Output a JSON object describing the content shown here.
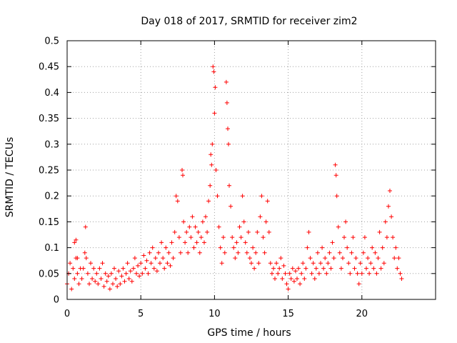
{
  "chart_data": {
    "type": "scatter",
    "title": "Day 018 of 2017, SRMTID for receiver zim2",
    "xlabel": "GPS time / hours",
    "ylabel": "SRMTID / TECUs",
    "xlim": [
      0,
      25
    ],
    "ylim": [
      0,
      0.5
    ],
    "x_ticks": [
      0,
      5,
      10,
      15,
      20
    ],
    "y_ticks": [
      0,
      0.05,
      0.1,
      0.15,
      0.2,
      0.25,
      0.3,
      0.35,
      0.4,
      0.45,
      0.5
    ],
    "grid": true,
    "marker": "+",
    "color": "#ff0000",
    "series": [
      {
        "name": "SRMTID",
        "points": [
          [
            0.0,
            0.03
          ],
          [
            0.1,
            0.05
          ],
          [
            0.2,
            0.07
          ],
          [
            0.3,
            0.02
          ],
          [
            0.4,
            0.06
          ],
          [
            0.5,
            0.04
          ],
          [
            0.6,
            0.08
          ],
          [
            0.7,
            0.05
          ],
          [
            0.8,
            0.03
          ],
          [
            0.9,
            0.06
          ],
          [
            0.5,
            0.11
          ],
          [
            0.6,
            0.115
          ],
          [
            0.7,
            0.08
          ],
          [
            1.0,
            0.04
          ],
          [
            1.1,
            0.06
          ],
          [
            1.2,
            0.09
          ],
          [
            1.25,
            0.14
          ],
          [
            1.3,
            0.08
          ],
          [
            1.4,
            0.05
          ],
          [
            1.5,
            0.03
          ],
          [
            1.6,
            0.07
          ],
          [
            1.7,
            0.04
          ],
          [
            1.8,
            0.06
          ],
          [
            1.9,
            0.035
          ],
          [
            2.0,
            0.05
          ],
          [
            2.1,
            0.03
          ],
          [
            2.2,
            0.06
          ],
          [
            2.3,
            0.04
          ],
          [
            2.4,
            0.07
          ],
          [
            2.5,
            0.025
          ],
          [
            2.6,
            0.05
          ],
          [
            2.7,
            0.035
          ],
          [
            2.8,
            0.045
          ],
          [
            2.9,
            0.02
          ],
          [
            3.0,
            0.05
          ],
          [
            3.1,
            0.03
          ],
          [
            3.2,
            0.06
          ],
          [
            3.3,
            0.04
          ],
          [
            3.4,
            0.025
          ],
          [
            3.5,
            0.055
          ],
          [
            3.6,
            0.03
          ],
          [
            3.7,
            0.045
          ],
          [
            3.8,
            0.06
          ],
          [
            3.9,
            0.035
          ],
          [
            4.0,
            0.05
          ],
          [
            4.1,
            0.07
          ],
          [
            4.2,
            0.04
          ],
          [
            4.3,
            0.055
          ],
          [
            4.4,
            0.035
          ],
          [
            4.5,
            0.06
          ],
          [
            4.6,
            0.08
          ],
          [
            4.7,
            0.05
          ],
          [
            4.8,
            0.065
          ],
          [
            4.9,
            0.045
          ],
          [
            5.0,
            0.07
          ],
          [
            5.1,
            0.05
          ],
          [
            5.2,
            0.085
          ],
          [
            5.3,
            0.06
          ],
          [
            5.4,
            0.075
          ],
          [
            5.5,
            0.05
          ],
          [
            5.6,
            0.09
          ],
          [
            5.7,
            0.07
          ],
          [
            5.8,
            0.1
          ],
          [
            5.9,
            0.06
          ],
          [
            6.0,
            0.08
          ],
          [
            6.1,
            0.055
          ],
          [
            6.2,
            0.09
          ],
          [
            6.3,
            0.07
          ],
          [
            6.4,
            0.11
          ],
          [
            6.5,
            0.08
          ],
          [
            6.6,
            0.06
          ],
          [
            6.7,
            0.1
          ],
          [
            6.8,
            0.07
          ],
          [
            6.9,
            0.09
          ],
          [
            7.0,
            0.065
          ],
          [
            7.1,
            0.11
          ],
          [
            7.2,
            0.08
          ],
          [
            7.3,
            0.13
          ],
          [
            7.4,
            0.2
          ],
          [
            7.5,
            0.19
          ],
          [
            7.6,
            0.12
          ],
          [
            7.7,
            0.09
          ],
          [
            7.8,
            0.25
          ],
          [
            7.85,
            0.24
          ],
          [
            7.9,
            0.15
          ],
          [
            8.0,
            0.11
          ],
          [
            8.1,
            0.13
          ],
          [
            8.2,
            0.09
          ],
          [
            8.3,
            0.14
          ],
          [
            8.4,
            0.12
          ],
          [
            8.5,
            0.16
          ],
          [
            8.6,
            0.1
          ],
          [
            8.7,
            0.14
          ],
          [
            8.8,
            0.11
          ],
          [
            8.9,
            0.13
          ],
          [
            9.0,
            0.09
          ],
          [
            9.1,
            0.12
          ],
          [
            9.2,
            0.15
          ],
          [
            9.3,
            0.11
          ],
          [
            9.4,
            0.16
          ],
          [
            9.5,
            0.13
          ],
          [
            9.6,
            0.19
          ],
          [
            9.7,
            0.22
          ],
          [
            9.75,
            0.28
          ],
          [
            9.8,
            0.26
          ],
          [
            9.85,
            0.3
          ],
          [
            9.9,
            0.45
          ],
          [
            9.95,
            0.44
          ],
          [
            10.0,
            0.36
          ],
          [
            10.05,
            0.41
          ],
          [
            10.1,
            0.25
          ],
          [
            10.2,
            0.2
          ],
          [
            10.3,
            0.14
          ],
          [
            10.4,
            0.1
          ],
          [
            10.5,
            0.07
          ],
          [
            10.6,
            0.12
          ],
          [
            10.7,
            0.09
          ],
          [
            10.8,
            0.42
          ],
          [
            10.85,
            0.38
          ],
          [
            10.9,
            0.33
          ],
          [
            10.95,
            0.3
          ],
          [
            11.0,
            0.22
          ],
          [
            11.1,
            0.18
          ],
          [
            11.2,
            0.12
          ],
          [
            11.3,
            0.1
          ],
          [
            11.4,
            0.08
          ],
          [
            11.5,
            0.11
          ],
          [
            11.6,
            0.09
          ],
          [
            11.7,
            0.14
          ],
          [
            11.8,
            0.12
          ],
          [
            11.9,
            0.2
          ],
          [
            12.0,
            0.15
          ],
          [
            12.1,
            0.11
          ],
          [
            12.2,
            0.09
          ],
          [
            12.3,
            0.13
          ],
          [
            12.4,
            0.08
          ],
          [
            12.5,
            0.07
          ],
          [
            12.6,
            0.1
          ],
          [
            12.7,
            0.06
          ],
          [
            12.8,
            0.09
          ],
          [
            12.9,
            0.13
          ],
          [
            13.0,
            0.07
          ],
          [
            13.1,
            0.16
          ],
          [
            13.2,
            0.2
          ],
          [
            13.3,
            0.12
          ],
          [
            13.4,
            0.09
          ],
          [
            13.5,
            0.15
          ],
          [
            13.6,
            0.19
          ],
          [
            13.7,
            0.13
          ],
          [
            13.8,
            0.07
          ],
          [
            13.9,
            0.05
          ],
          [
            14.0,
            0.06
          ],
          [
            14.1,
            0.04
          ],
          [
            14.2,
            0.07
          ],
          [
            14.3,
            0.05
          ],
          [
            14.4,
            0.06
          ],
          [
            14.5,
            0.08
          ],
          [
            14.6,
            0.04
          ],
          [
            14.7,
            0.065
          ],
          [
            14.8,
            0.05
          ],
          [
            14.9,
            0.03
          ],
          [
            15.0,
            0.02
          ],
          [
            15.1,
            0.05
          ],
          [
            15.2,
            0.04
          ],
          [
            15.3,
            0.06
          ],
          [
            15.4,
            0.035
          ],
          [
            15.5,
            0.055
          ],
          [
            15.6,
            0.04
          ],
          [
            15.7,
            0.06
          ],
          [
            15.8,
            0.03
          ],
          [
            15.9,
            0.05
          ],
          [
            16.0,
            0.07
          ],
          [
            16.1,
            0.04
          ],
          [
            16.2,
            0.06
          ],
          [
            16.3,
            0.1
          ],
          [
            16.4,
            0.13
          ],
          [
            16.5,
            0.08
          ],
          [
            16.6,
            0.05
          ],
          [
            16.7,
            0.07
          ],
          [
            16.8,
            0.04
          ],
          [
            16.9,
            0.06
          ],
          [
            17.0,
            0.09
          ],
          [
            17.1,
            0.05
          ],
          [
            17.2,
            0.07
          ],
          [
            17.3,
            0.1
          ],
          [
            17.4,
            0.06
          ],
          [
            17.5,
            0.08
          ],
          [
            17.6,
            0.05
          ],
          [
            17.7,
            0.07
          ],
          [
            17.8,
            0.09
          ],
          [
            17.9,
            0.06
          ],
          [
            18.0,
            0.11
          ],
          [
            18.1,
            0.08
          ],
          [
            18.2,
            0.26
          ],
          [
            18.25,
            0.24
          ],
          [
            18.3,
            0.2
          ],
          [
            18.4,
            0.14
          ],
          [
            18.5,
            0.09
          ],
          [
            18.6,
            0.06
          ],
          [
            18.7,
            0.08
          ],
          [
            18.8,
            0.12
          ],
          [
            18.9,
            0.15
          ],
          [
            19.0,
            0.1
          ],
          [
            19.1,
            0.07
          ],
          [
            19.2,
            0.05
          ],
          [
            19.3,
            0.09
          ],
          [
            19.4,
            0.12
          ],
          [
            19.5,
            0.06
          ],
          [
            19.6,
            0.08
          ],
          [
            19.7,
            0.05
          ],
          [
            19.8,
            0.03
          ],
          [
            19.9,
            0.07
          ],
          [
            20.0,
            0.05
          ],
          [
            20.1,
            0.09
          ],
          [
            20.2,
            0.12
          ],
          [
            20.3,
            0.06
          ],
          [
            20.4,
            0.08
          ],
          [
            20.5,
            0.05
          ],
          [
            20.6,
            0.07
          ],
          [
            20.7,
            0.1
          ],
          [
            20.8,
            0.06
          ],
          [
            20.9,
            0.09
          ],
          [
            21.0,
            0.05
          ],
          [
            21.1,
            0.08
          ],
          [
            21.2,
            0.13
          ],
          [
            21.3,
            0.06
          ],
          [
            21.4,
            0.1
          ],
          [
            21.5,
            0.07
          ],
          [
            21.6,
            0.15
          ],
          [
            21.7,
            0.12
          ],
          [
            21.8,
            0.18
          ],
          [
            21.9,
            0.21
          ],
          [
            22.0,
            0.16
          ],
          [
            22.1,
            0.12
          ],
          [
            22.2,
            0.08
          ],
          [
            22.3,
            0.1
          ],
          [
            22.4,
            0.06
          ],
          [
            22.5,
            0.08
          ],
          [
            22.6,
            0.05
          ],
          [
            22.7,
            0.04
          ]
        ]
      }
    ]
  }
}
